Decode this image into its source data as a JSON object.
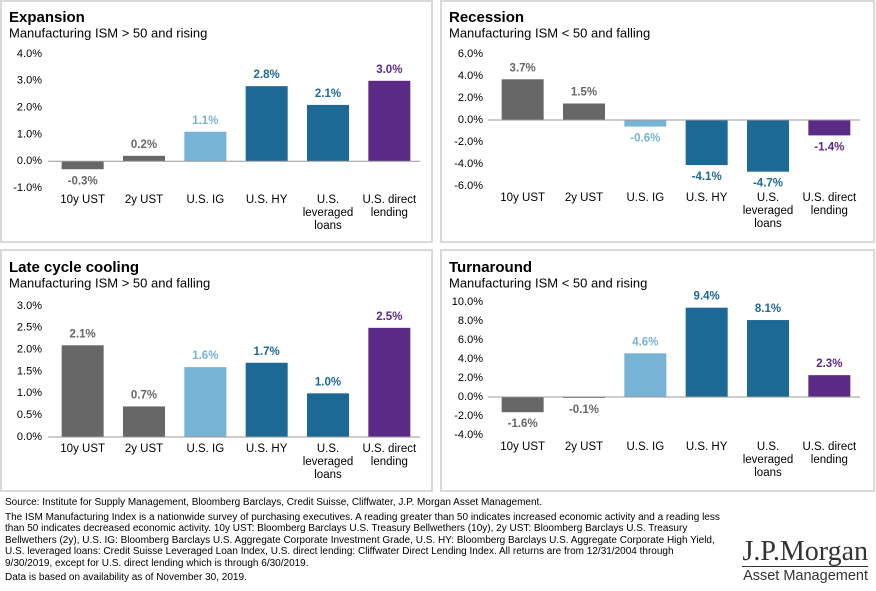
{
  "chart_data": [
    {
      "type": "bar",
      "title": "Expansion",
      "subtitle": "Manufacturing ISM > 50 and rising",
      "categories": [
        "10y UST",
        "2y UST",
        "U.S. IG",
        "U.S. HY",
        "U.S. leveraged loans",
        "U.S. direct lending"
      ],
      "values": [
        -0.3,
        0.2,
        1.1,
        2.8,
        2.1,
        3.0
      ],
      "value_labels": [
        "-0.3%",
        "0.2%",
        "1.1%",
        "2.8%",
        "2.1%",
        "3.0%"
      ],
      "colors": [
        "#676767",
        "#676767",
        "#77b3d4",
        "#1d6995",
        "#1d6995",
        "#5b2a86"
      ],
      "ylim": [
        -1,
        4
      ],
      "yticks": [
        {
          "value": -1,
          "label": "-1.0%"
        },
        {
          "value": 0,
          "label": "0.0%"
        },
        {
          "value": 1,
          "label": "1.0%"
        },
        {
          "value": 2,
          "label": "2.0%"
        },
        {
          "value": 3,
          "label": "3.0%"
        },
        {
          "value": 4,
          "label": "4.0%"
        }
      ]
    },
    {
      "type": "bar",
      "title": "Recession",
      "subtitle": "Manufacturing ISM < 50 and falling",
      "categories": [
        "10y UST",
        "2y UST",
        "U.S. IG",
        "U.S. HY",
        "U.S. leveraged loans",
        "U.S. direct lending"
      ],
      "values": [
        3.7,
        1.5,
        -0.6,
        -4.1,
        -4.7,
        -1.4
      ],
      "value_labels": [
        "3.7%",
        "1.5%",
        "-0.6%",
        "-4.1%",
        "-4.7%",
        "-1.4%"
      ],
      "colors": [
        "#676767",
        "#676767",
        "#77b3d4",
        "#1d6995",
        "#1d6995",
        "#5b2a86"
      ],
      "ylim": [
        -6,
        6
      ],
      "yticks": [
        {
          "value": -6,
          "label": "-6.0%"
        },
        {
          "value": -4,
          "label": "-4.0%"
        },
        {
          "value": -2,
          "label": "-2.0%"
        },
        {
          "value": 0,
          "label": "0.0%"
        },
        {
          "value": 2,
          "label": "2.0%"
        },
        {
          "value": 4,
          "label": "4.0%"
        },
        {
          "value": 6,
          "label": "6.0%"
        }
      ]
    },
    {
      "type": "bar",
      "title": "Late cycle cooling",
      "subtitle": "Manufacturing ISM > 50 and falling",
      "categories": [
        "10y UST",
        "2y UST",
        "U.S. IG",
        "U.S. HY",
        "U.S. leveraged loans",
        "U.S. direct lending"
      ],
      "values": [
        2.1,
        0.7,
        1.6,
        1.7,
        1.0,
        2.5
      ],
      "value_labels": [
        "2.1%",
        "0.7%",
        "1.6%",
        "1.7%",
        "1.0%",
        "2.5%"
      ],
      "colors": [
        "#676767",
        "#676767",
        "#77b3d4",
        "#1d6995",
        "#1d6995",
        "#5b2a86"
      ],
      "ylim": [
        0,
        3
      ],
      "yticks": [
        {
          "value": 0,
          "label": "0.0%"
        },
        {
          "value": 0.5,
          "label": "0.5%"
        },
        {
          "value": 1,
          "label": "1.0%"
        },
        {
          "value": 1.5,
          "label": "1.5%"
        },
        {
          "value": 2,
          "label": "2.0%"
        },
        {
          "value": 2.5,
          "label": "2.5%"
        },
        {
          "value": 3,
          "label": "3.0%"
        }
      ]
    },
    {
      "type": "bar",
      "title": "Turnaround",
      "subtitle": "Manufacturing ISM < 50 and rising",
      "categories": [
        "10y UST",
        "2y UST",
        "U.S. IG",
        "U.S. HY",
        "U.S. leveraged loans",
        "U.S. direct lending"
      ],
      "values": [
        -1.6,
        -0.1,
        4.6,
        9.4,
        8.1,
        2.3
      ],
      "value_labels": [
        "-1.6%",
        "-0.1%",
        "4.6%",
        "9.4%",
        "8.1%",
        "2.3%"
      ],
      "colors": [
        "#676767",
        "#676767",
        "#77b3d4",
        "#1d6995",
        "#1d6995",
        "#5b2a86"
      ],
      "ylim": [
        -4,
        10
      ],
      "yticks": [
        {
          "value": -4,
          "label": "-4.0%"
        },
        {
          "value": -2,
          "label": "-2.0%"
        },
        {
          "value": 0,
          "label": "0.0%"
        },
        {
          "value": 2,
          "label": "2.0%"
        },
        {
          "value": 4,
          "label": "4.0%"
        },
        {
          "value": 6,
          "label": "6.0%"
        },
        {
          "value": 8,
          "label": "8.0%"
        },
        {
          "value": 10,
          "label": "10.0%"
        }
      ]
    }
  ],
  "footer": {
    "source": "Source: Institute for Supply Management, Bloomberg Barclays, Credit Suisse, Cliffwater, J.P. Morgan Asset Management.",
    "note": "The ISM Manufacturing Index is a nationwide survey of purchasing executives. A reading greater than 50 indicates increased economic activity and a reading less than 50 indicates decreased economic activity. 10y UST: Bloomberg Barclays U.S. Treasury Bellwethers (10y), 2y UST: Bloomberg Barclays U.S. Treasury Bellwethers (2y), U.S. IG: Bloomberg Barclays U.S. Aggregate Corporate Investment Grade, U.S. HY: Bloomberg Barclays U.S. Aggregate Corporate High Yield, U.S. leveraged loans: Credit Suisse Leveraged Loan Index, U.S. direct lending: Cliffwater Direct Lending Index. All returns are from 12/31/2004 through 9/30/2019, except for U.S. direct lending which is through 6/30/2019.",
    "data_note": "Data is based on availability as of November 30, 2019."
  },
  "logo": {
    "name": "J.P.Morgan",
    "tagline": "Asset Management"
  }
}
